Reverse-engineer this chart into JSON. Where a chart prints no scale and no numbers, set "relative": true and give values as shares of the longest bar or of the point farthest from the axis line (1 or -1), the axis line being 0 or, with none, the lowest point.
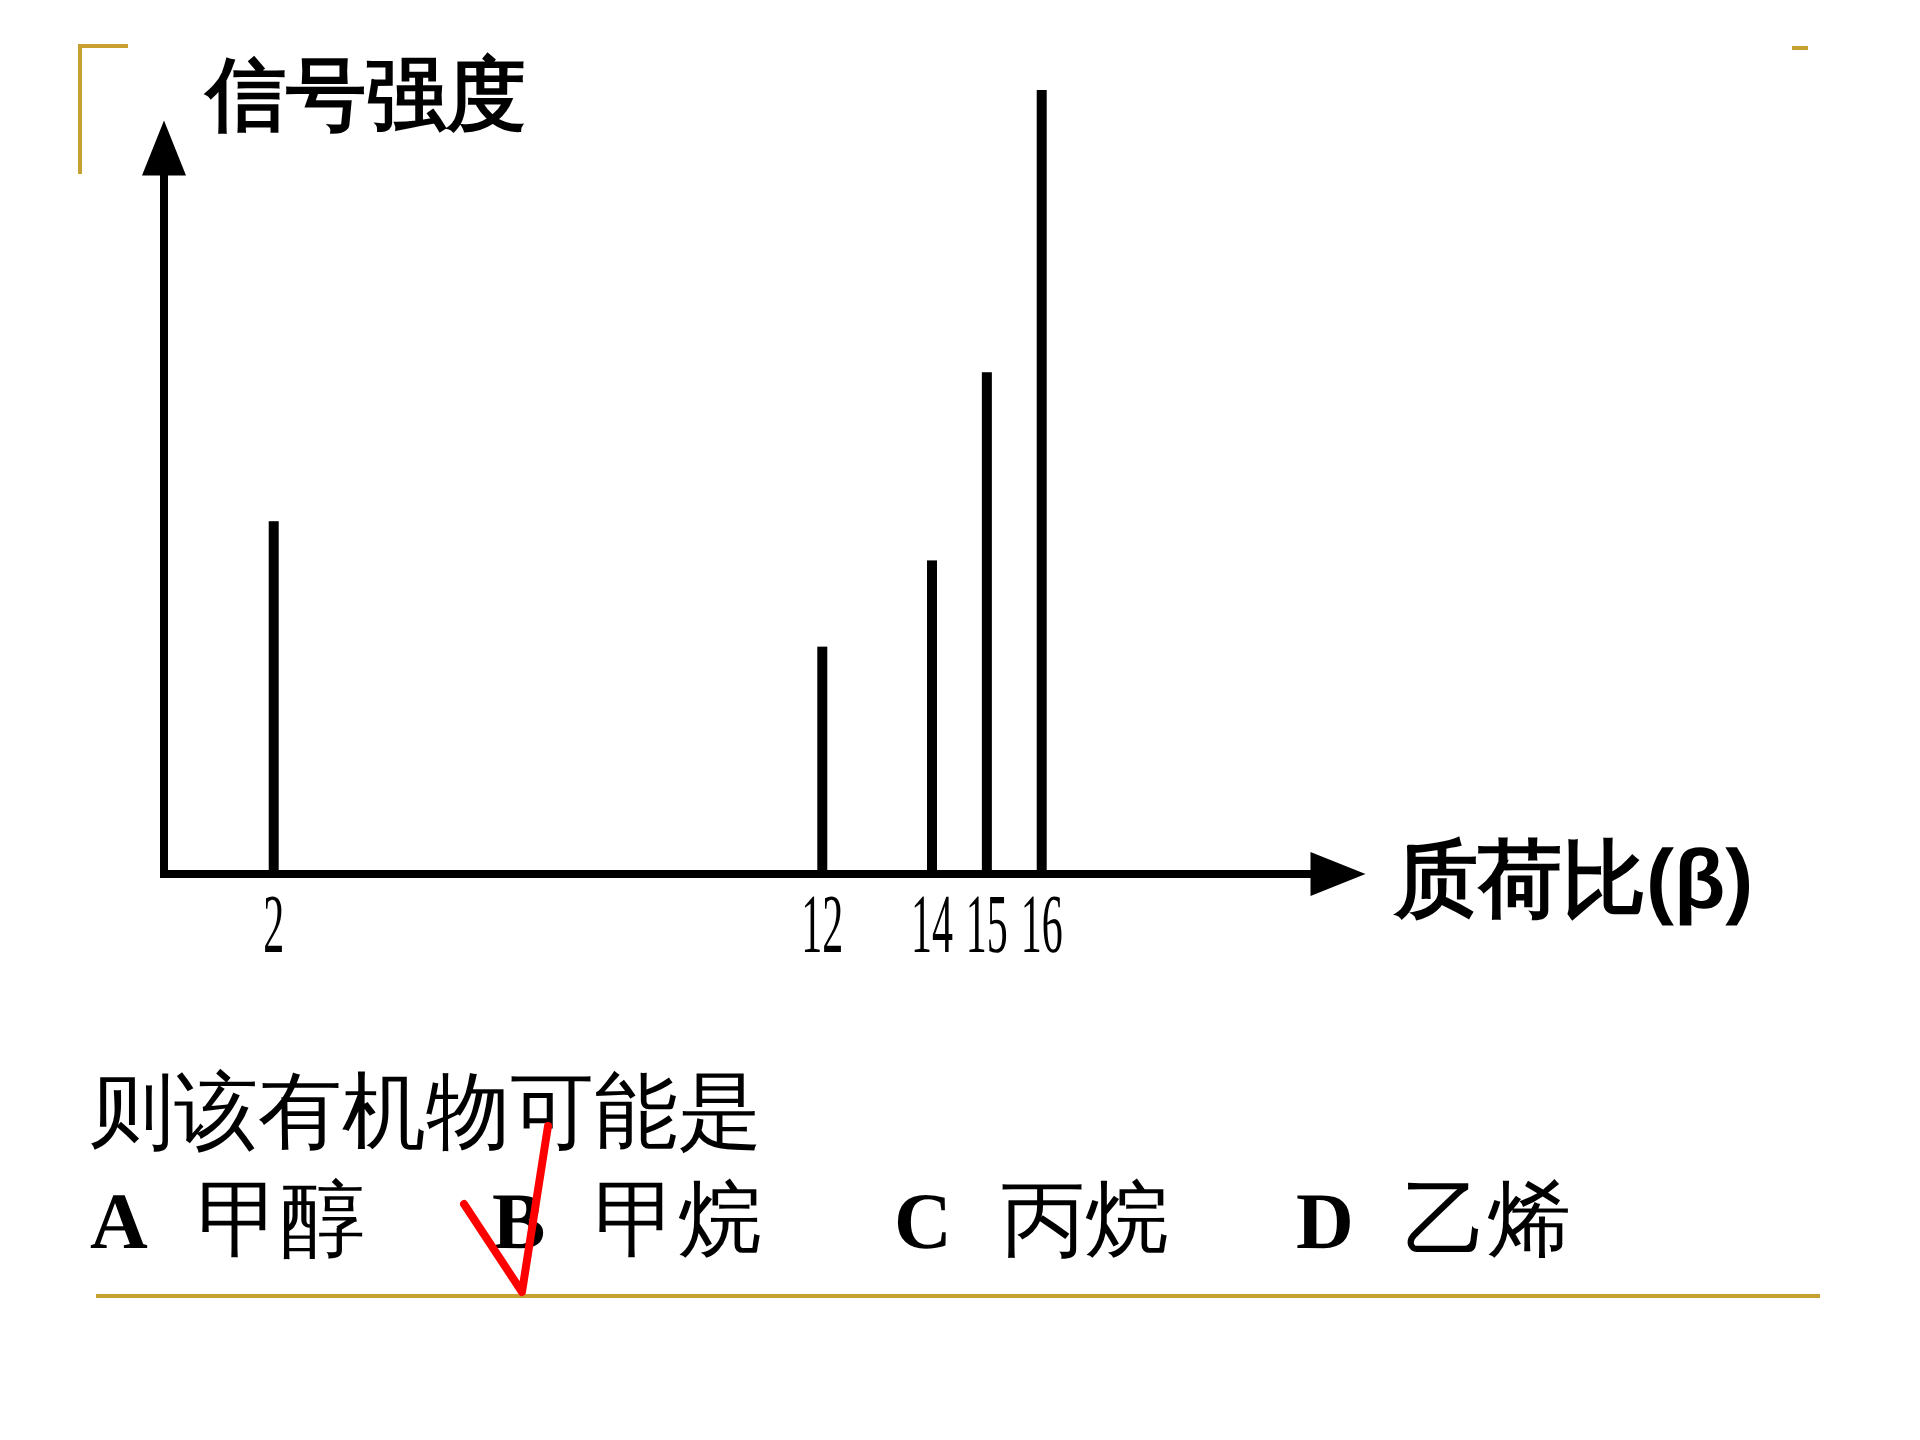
{
  "chart_data": {
    "type": "bar",
    "x": [
      2,
      12,
      14,
      15,
      16
    ],
    "values": [
      0.45,
      0.29,
      0.4,
      0.64,
      1
    ],
    "relative": true,
    "color": "#000000",
    "xlim": [
      0,
      21
    ],
    "xticks": [
      2,
      12,
      14,
      15,
      16
    ],
    "xlabel": "质荷比(β)",
    "ylabel": "信号强度",
    "annotations": [
      "则该有机物可能是",
      "A 甲醇",
      "B 甲烷",
      "C 丙烷",
      "D 乙烯"
    ]
  }
}
